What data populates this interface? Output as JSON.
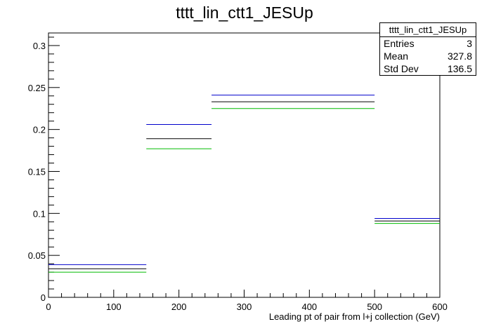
{
  "chart_data": {
    "type": "bar",
    "title": "tttt_lin_ctt1_JESUp",
    "xlabel": "Leading pt of pair from l+j collection (GeV)",
    "ylabel": "",
    "xlim": [
      0,
      600
    ],
    "ylim": [
      0,
      0.315
    ],
    "x_ticks": [
      "0",
      "100",
      "200",
      "300",
      "400",
      "500",
      "600"
    ],
    "y_ticks": [
      "0",
      "0.05",
      "0.1",
      "0.15",
      "0.2",
      "0.25",
      "0.3"
    ],
    "bin_edges": [
      0,
      150,
      250,
      500,
      600
    ],
    "series": [
      {
        "color": "#0000cc",
        "values": [
          0.039,
          0.206,
          0.241,
          0.094
        ]
      },
      {
        "color": "#000000",
        "values": [
          0.034,
          0.189,
          0.233,
          0.091
        ]
      },
      {
        "color": "#00bb00",
        "values": [
          0.03,
          0.177,
          0.225,
          0.088
        ]
      }
    ],
    "grid": false
  },
  "stats": {
    "name": "tttt_lin_ctt1_JESUp",
    "entries_label": "Entries",
    "entries_value": "3",
    "mean_label": "Mean",
    "mean_value": "327.8",
    "stddev_label": "Std Dev",
    "stddev_value": "136.5"
  }
}
